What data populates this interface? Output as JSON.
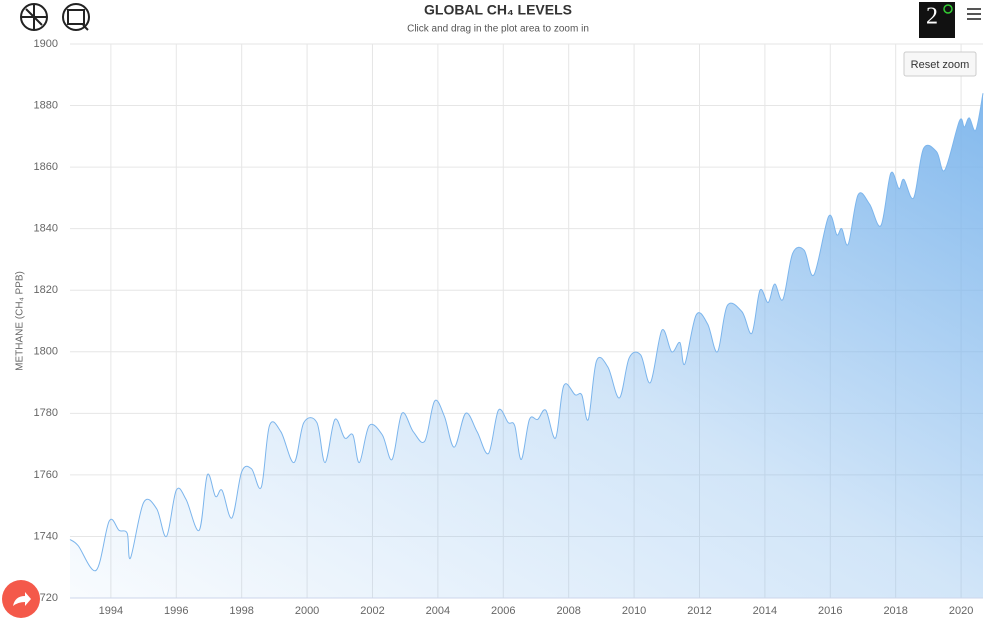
{
  "chart_data": {
    "type": "area",
    "title": "GLOBAL CH₄ LEVELS",
    "subtitle": "Click and drag in the plot area to zoom in",
    "y_label": "METHANE (CH₄ PPB)",
    "button": "Reset zoom",
    "color": "#7cb5ec",
    "grid": true,
    "x": [
      1992.75,
      1993.0,
      1993.55,
      1993.95,
      1994.25,
      1994.5,
      1994.6,
      1995.0,
      1995.4,
      1995.7,
      1996.0,
      1996.3,
      1996.7,
      1996.95,
      1997.2,
      1997.4,
      1997.7,
      1998.0,
      1998.3,
      1998.6,
      1998.85,
      1999.2,
      1999.6,
      1999.9,
      2000.3,
      2000.55,
      2000.85,
      2001.15,
      2001.4,
      2001.6,
      2001.9,
      2002.3,
      2002.6,
      2002.9,
      2003.25,
      2003.6,
      2003.9,
      2004.2,
      2004.5,
      2004.85,
      2005.2,
      2005.55,
      2005.85,
      2006.15,
      2006.35,
      2006.55,
      2006.8,
      2007.05,
      2007.3,
      2007.6,
      2007.85,
      2008.2,
      2008.4,
      2008.6,
      2008.85,
      2009.2,
      2009.55,
      2009.85,
      2010.2,
      2010.5,
      2010.85,
      2011.15,
      2011.4,
      2011.55,
      2011.9,
      2012.25,
      2012.55,
      2012.85,
      2013.3,
      2013.6,
      2013.85,
      2014.1,
      2014.3,
      2014.55,
      2014.85,
      2015.2,
      2015.5,
      2015.95,
      2016.2,
      2016.35,
      2016.55,
      2016.85,
      2017.2,
      2017.55,
      2017.85,
      2018.1,
      2018.25,
      2018.55,
      2018.85,
      2019.25,
      2019.5,
      2019.95,
      2020.1,
      2020.25,
      2020.45,
      2020.67
    ],
    "values": [
      1739,
      1737,
      1729,
      1745,
      1742,
      1741,
      1733,
      1751,
      1749,
      1740,
      1755,
      1752,
      1742,
      1760,
      1753,
      1755,
      1746,
      1761,
      1762,
      1756,
      1776,
      1774,
      1764,
      1777,
      1777,
      1764,
      1778,
      1772,
      1773,
      1764,
      1776,
      1773,
      1765,
      1780,
      1774,
      1771,
      1784,
      1779,
      1769,
      1780,
      1774,
      1767,
      1781,
      1777,
      1776,
      1765,
      1778,
      1778,
      1781,
      1772,
      1789,
      1786,
      1786,
      1778,
      1797,
      1795,
      1785,
      1798,
      1799,
      1790,
      1807,
      1800,
      1803,
      1796,
      1812,
      1809,
      1800,
      1815,
      1813,
      1806,
      1820,
      1816,
      1822,
      1817,
      1832,
      1833,
      1825,
      1844,
      1838,
      1840,
      1835,
      1851,
      1848,
      1841,
      1858,
      1853,
      1856,
      1850,
      1866,
      1865,
      1859,
      1875,
      1873,
      1876,
      1872,
      1884
    ],
    "xlim": [
      1992.75,
      2020.67
    ],
    "xticks": [
      1994,
      1996,
      1998,
      2000,
      2002,
      2004,
      2006,
      2008,
      2010,
      2012,
      2014,
      2016,
      2018,
      2020
    ],
    "ylim": [
      1720,
      1900
    ],
    "yticks": [
      1720,
      1740,
      1760,
      1780,
      1800,
      1820,
      1840,
      1860,
      1880,
      1900
    ]
  }
}
